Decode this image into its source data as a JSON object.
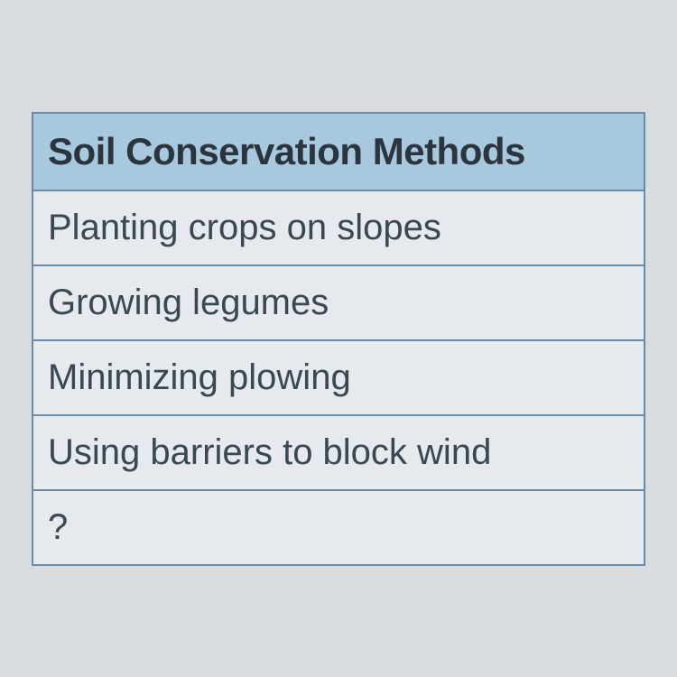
{
  "table": {
    "header": "Soil Conservation Methods",
    "rows": [
      "Planting crops on slopes",
      "Growing legumes",
      "Minimizing plowing",
      "Using barriers to block wind",
      "?"
    ],
    "header_bg_color": "#a8c8dd",
    "row_bg_color": "#e6eaee",
    "border_color": "#6a8ba8",
    "header_text_color": "#2a3540",
    "row_text_color": "#3a4852",
    "header_fontsize": 42,
    "row_fontsize": 40
  },
  "page_bg_color": "#d8dce0"
}
